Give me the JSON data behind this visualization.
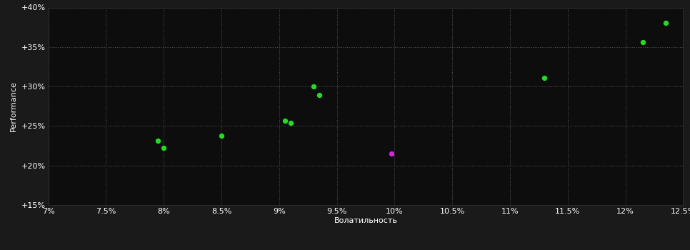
{
  "background_color": "#1a1a1a",
  "plot_bg_color": "#0d0d0d",
  "grid_color": "#555555",
  "text_color": "#ffffff",
  "xlabel": "Волатильность",
  "ylabel": "Performance",
  "xlim": [
    0.07,
    0.125
  ],
  "ylim": [
    0.15,
    0.4
  ],
  "xticks": [
    0.07,
    0.075,
    0.08,
    0.085,
    0.09,
    0.095,
    0.1,
    0.105,
    0.11,
    0.115,
    0.12,
    0.125
  ],
  "yticks": [
    0.15,
    0.2,
    0.25,
    0.3,
    0.35,
    0.4
  ],
  "ytick_labels": [
    "+15%",
    "+20%",
    "+25%",
    "+30%",
    "+35%",
    "+40%"
  ],
  "xtick_labels": [
    "7%",
    "7.5%",
    "8%",
    "8.5%",
    "9%",
    "9.5%",
    "10%",
    "10.5%",
    "11%",
    "11.5%",
    "12%",
    "12.5%"
  ],
  "green_points": [
    [
      0.0795,
      0.231
    ],
    [
      0.08,
      0.222
    ],
    [
      0.085,
      0.238
    ],
    [
      0.0905,
      0.257
    ],
    [
      0.091,
      0.254
    ],
    [
      0.093,
      0.3
    ],
    [
      0.0935,
      0.289
    ],
    [
      0.113,
      0.311
    ],
    [
      0.1215,
      0.356
    ],
    [
      0.1235,
      0.381
    ]
  ],
  "magenta_points": [
    [
      0.0997,
      0.215
    ]
  ],
  "green_color": "#22dd22",
  "magenta_color": "#dd22dd",
  "marker_size": 28,
  "xlabel_fontsize": 8,
  "ylabel_fontsize": 8,
  "tick_fontsize": 8
}
